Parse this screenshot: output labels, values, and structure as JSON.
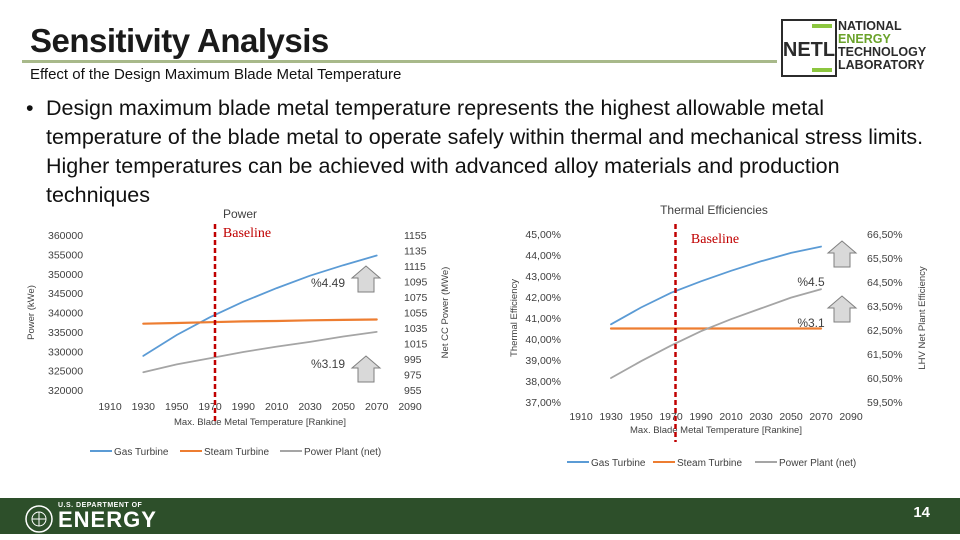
{
  "header": {
    "title": "Sensitivity Analysis",
    "subtitle": "Effect of the Design Maximum Blade Metal Temperature"
  },
  "logo": {
    "lines": [
      "NATIONAL",
      "ENERGY",
      "TECHNOLOGY",
      "LABORATORY"
    ],
    "mark_letters": "NETL"
  },
  "bullet": {
    "text": "Design maximum blade metal temperature represents the highest allowable metal temperature of the blade metal to operate safely within thermal and mechanical stress limits. Higher temperatures can be achieved with advanced alloy materials and production techniques"
  },
  "footer": {
    "agency_small": "U.S. DEPARTMENT OF",
    "agency_big": "ENERGY",
    "page_number": "14"
  },
  "colors": {
    "gas_turbine": "#5b9bd5",
    "steam_turbine": "#ed7d31",
    "power_plant": "#a5a5a5",
    "baseline_marker": "#c00000",
    "footer_band": "#2d4f2a",
    "title_rule": "#a8b98a"
  },
  "chart_data": [
    {
      "type": "line",
      "title": "Power",
      "xlabel": "Max. Blade Metal Temperature [Rankine]",
      "ylabel": "Power (kWe)",
      "y2label": "Net CC Power (MWe)",
      "xlim": [
        1910,
        2090
      ],
      "xticks": [
        1910,
        1930,
        1950,
        1970,
        1990,
        2010,
        2030,
        2050,
        2070,
        2090
      ],
      "ylim": [
        320000,
        360000
      ],
      "yticks": [
        320000,
        325000,
        330000,
        335000,
        340000,
        345000,
        350000,
        355000,
        360000
      ],
      "y2lim": [
        955,
        1155
      ],
      "y2ticks": [
        955,
        975,
        995,
        1015,
        1035,
        1055,
        1075,
        1095,
        1115,
        1135,
        1155
      ],
      "baseline_x": 1973,
      "annotations": [
        {
          "text": "Baseline",
          "color": "#c00000"
        },
        {
          "text": "%4.49"
        },
        {
          "text": "%3.19"
        }
      ],
      "legend_position": "bottom",
      "series": [
        {
          "name": "Gas Turbine",
          "axis": "left",
          "color": "#5b9bd5",
          "x": [
            1930,
            1950,
            1970,
            1990,
            2010,
            2030,
            2050,
            2070
          ],
          "y": [
            328800,
            334200,
            338800,
            342800,
            346300,
            349500,
            352200,
            354700
          ]
        },
        {
          "name": "Steam Turbine",
          "axis": "left",
          "color": "#ed7d31",
          "x": [
            1930,
            1950,
            1970,
            1990,
            2010,
            2030,
            2050,
            2070
          ],
          "y": [
            337100,
            337300,
            337500,
            337700,
            337800,
            338000,
            338100,
            338200
          ]
        },
        {
          "name": "Power Plant (net)",
          "axis": "right",
          "color": "#a5a5a5",
          "x": [
            1930,
            1950,
            1970,
            1990,
            2010,
            2030,
            2050,
            2070
          ],
          "y": [
            978,
            988,
            996,
            1004,
            1011,
            1017,
            1024,
            1030
          ]
        }
      ]
    },
    {
      "type": "line",
      "title": "Thermal Efficiencies",
      "xlabel": "Max. Blade Metal Temperature [Rankine]",
      "ylabel": "Thermal Efficiency",
      "y2label": "LHV Net Plant Efficiency",
      "xlim": [
        1910,
        2090
      ],
      "xticks": [
        1910,
        1930,
        1950,
        1970,
        1990,
        2010,
        2030,
        2050,
        2070,
        2090
      ],
      "ylim": [
        37.0,
        45.0
      ],
      "yticks": [
        "37,00%",
        "38,00%",
        "39,00%",
        "40,00%",
        "41,00%",
        "42,00%",
        "43,00%",
        "44,00%",
        "45,00%"
      ],
      "y2lim": [
        59.5,
        66.5
      ],
      "y2ticks": [
        "59,50%",
        "60,50%",
        "61,50%",
        "62,50%",
        "63,50%",
        "64,50%",
        "65,50%",
        "66,50%"
      ],
      "baseline_x": 1973,
      "annotations": [
        {
          "text": "Baseline",
          "color": "#c00000"
        },
        {
          "text": "%4.5"
        },
        {
          "text": "%3.1"
        }
      ],
      "legend_position": "bottom",
      "series": [
        {
          "name": "Gas Turbine",
          "axis": "left",
          "color": "#5b9bd5",
          "x": [
            1930,
            1950,
            1970,
            1990,
            2010,
            2030,
            2050,
            2070
          ],
          "y": [
            40.7,
            41.5,
            42.2,
            42.75,
            43.25,
            43.7,
            44.1,
            44.4
          ]
        },
        {
          "name": "Steam Turbine",
          "axis": "left",
          "color": "#ed7d31",
          "x": [
            1930,
            1950,
            1970,
            1990,
            2010,
            2030,
            2050,
            2070
          ],
          "y": [
            40.5,
            40.5,
            40.5,
            40.5,
            40.5,
            40.5,
            40.5,
            40.5
          ]
        },
        {
          "name": "Power Plant (net)",
          "axis": "right",
          "color": "#a5a5a5",
          "x": [
            1930,
            1950,
            1970,
            1990,
            2010,
            2030,
            2050,
            2070
          ],
          "y": [
            60.5,
            61.2,
            61.85,
            62.45,
            62.95,
            63.4,
            63.85,
            64.2
          ]
        }
      ]
    }
  ]
}
